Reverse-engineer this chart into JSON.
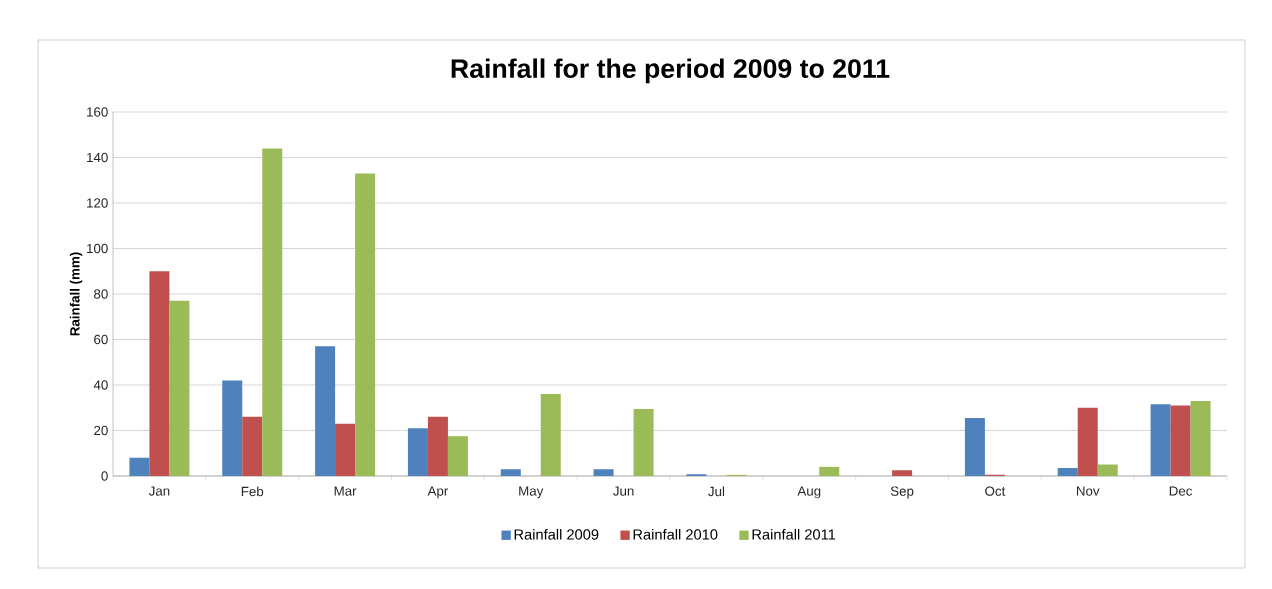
{
  "chart_data": {
    "type": "bar",
    "title": "Rainfall for the period 2009 to 2011",
    "ylabel": "Rainfall (mm)",
    "categories": [
      "Jan",
      "Feb",
      "Mar",
      "Apr",
      "May",
      "Jun",
      "Jul",
      "Aug",
      "Sep",
      "Oct",
      "Nov",
      "Dec"
    ],
    "series": [
      {
        "name": "Rainfall 2009",
        "color": "#4f81bd",
        "values": [
          8,
          42,
          57,
          21,
          3,
          3,
          0.8,
          0,
          0,
          25.5,
          3.5,
          31.5
        ]
      },
      {
        "name": "Rainfall 2010",
        "color": "#c0504d",
        "values": [
          90,
          26,
          23,
          26,
          0,
          0,
          0,
          0,
          2.5,
          0.5,
          30,
          31
        ]
      },
      {
        "name": "Rainfall 2011",
        "color": "#9bbb59",
        "values": [
          77,
          144,
          133,
          17.5,
          36,
          29.5,
          0.5,
          4,
          0,
          0,
          5,
          33
        ]
      }
    ],
    "ylim": [
      0,
      160
    ],
    "yticks": [
      0,
      20,
      40,
      60,
      80,
      100,
      120,
      140,
      160
    ],
    "grid": "y",
    "legend": "bottom"
  }
}
